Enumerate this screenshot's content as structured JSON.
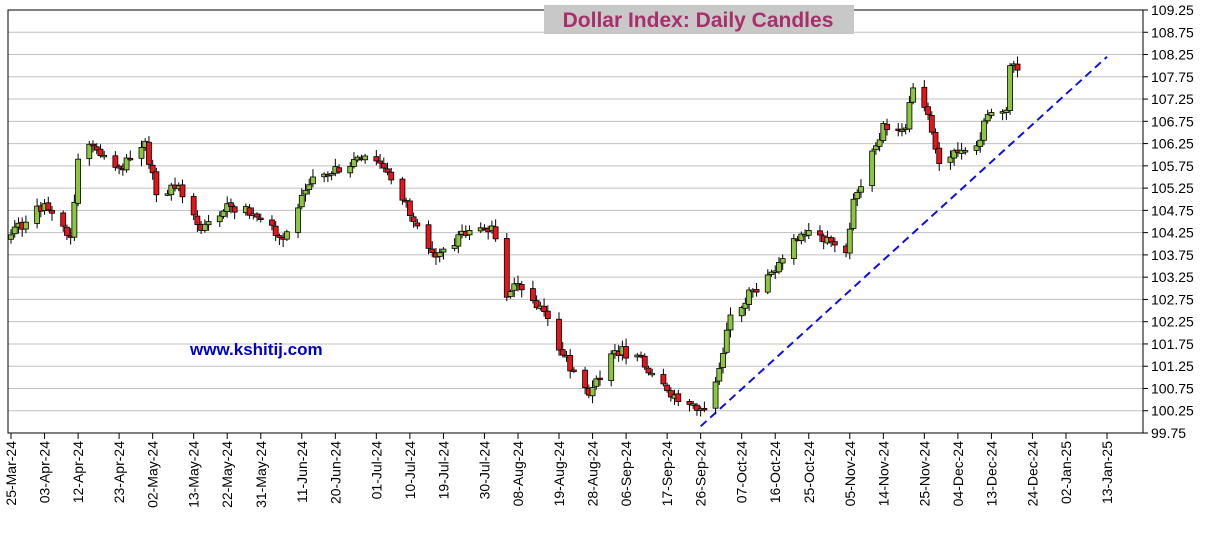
{
  "chart_data": {
    "type": "candlestick",
    "title": "Dollar Index: Daily Candles",
    "watermark": "www.kshitij.com",
    "y_ticks": [
      "109.25",
      "108.75",
      "108.25",
      "107.75",
      "107.25",
      "106.75",
      "106.25",
      "105.75",
      "105.25",
      "104.75",
      "104.25",
      "103.75",
      "103.25",
      "102.75",
      "102.25",
      "101.75",
      "101.25",
      "100.75",
      "100.25",
      "99.75"
    ],
    "x_ticks": [
      "25-Mar-24",
      "03-Apr-24",
      "12-Apr-24",
      "23-Apr-24",
      "02-May-24",
      "13-May-24",
      "22-May-24",
      "31-May-24",
      "11-Jun-24",
      "20-Jun-24",
      "01-Jul-24",
      "10-Jul-24",
      "19-Jul-24",
      "30-Jul-24",
      "08-Aug-24",
      "19-Aug-24",
      "28-Aug-24",
      "06-Sep-24",
      "17-Sep-24",
      "26-Sep-24",
      "07-Oct-24",
      "16-Oct-24",
      "25-Oct-24",
      "05-Nov-24",
      "14-Nov-24",
      "25-Nov-24",
      "04-Dec-24",
      "13-Dec-24",
      "24-Dec-24",
      "02-Jan-25",
      "13-Jan-25"
    ],
    "ylim": [
      99.75,
      109.25
    ],
    "grid": true,
    "colors": {
      "up": "#8cc63f",
      "down": "#e8141c",
      "trendline": "#1010e0",
      "title": "#a8306a",
      "watermark": "#0000cc"
    },
    "trendline": {
      "start": {
        "x": "26-Sep-24",
        "y": 99.9
      },
      "end": {
        "x": "13-Jan-25",
        "y": 108.2
      }
    },
    "anchors": [
      {
        "x": "25-Mar-24",
        "c": 104.2,
        "lo": 104.05,
        "hi": 104.4
      },
      {
        "x": "03-Apr-24",
        "c": 104.9,
        "lo": 104.35,
        "hi": 105.1
      },
      {
        "x": "10-Apr-24",
        "c": 104.15,
        "lo": 103.9,
        "hi": 104.3
      },
      {
        "x": "12-Apr-24",
        "c": 105.9,
        "lo": 105.2,
        "hi": 106.1
      },
      {
        "x": "16-Apr-24",
        "c": 106.2,
        "lo": 106.0,
        "hi": 106.5
      },
      {
        "x": "23-Apr-24",
        "c": 105.7,
        "lo": 105.55,
        "hi": 106.0
      },
      {
        "x": "30-Apr-24",
        "c": 106.3,
        "lo": 106.05,
        "hi": 106.5
      },
      {
        "x": "03-May-24",
        "c": 105.1,
        "lo": 104.7,
        "hi": 105.3
      },
      {
        "x": "09-May-24",
        "c": 105.3,
        "lo": 105.1,
        "hi": 105.6
      },
      {
        "x": "15-May-24",
        "c": 104.3,
        "lo": 104.1,
        "hi": 104.6
      },
      {
        "x": "22-May-24",
        "c": 104.9,
        "lo": 104.7,
        "hi": 105.1
      },
      {
        "x": "30-May-24",
        "c": 104.6,
        "lo": 104.5,
        "hi": 105.1
      },
      {
        "x": "06-Jun-24",
        "c": 104.1,
        "lo": 104.0,
        "hi": 104.3
      },
      {
        "x": "12-Jun-24",
        "c": 105.2,
        "lo": 104.9,
        "hi": 105.3
      },
      {
        "x": "14-Jun-24",
        "c": 105.5,
        "lo": 105.2,
        "hi": 105.8
      },
      {
        "x": "27-Jun-24",
        "c": 105.9,
        "lo": 105.7,
        "hi": 106.1
      },
      {
        "x": "03-Jul-24",
        "c": 105.7,
        "lo": 105.5,
        "hi": 105.9
      },
      {
        "x": "12-Jul-24",
        "c": 104.4,
        "lo": 104.1,
        "hi": 104.6
      },
      {
        "x": "17-Jul-24",
        "c": 103.7,
        "lo": 103.6,
        "hi": 104.0
      },
      {
        "x": "26-Jul-24",
        "c": 104.3,
        "lo": 104.1,
        "hi": 104.6
      },
      {
        "x": "01-Aug-24",
        "c": 104.4,
        "lo": 104.1,
        "hi": 104.7
      },
      {
        "x": "05-Aug-24",
        "c": 102.8,
        "lo": 102.15,
        "hi": 103.2
      },
      {
        "x": "07-Aug-24",
        "c": 103.1,
        "lo": 102.8,
        "hi": 103.3
      },
      {
        "x": "14-Aug-24",
        "c": 102.6,
        "lo": 102.4,
        "hi": 103.0
      },
      {
        "x": "20-Aug-24",
        "c": 101.5,
        "lo": 101.3,
        "hi": 101.8
      },
      {
        "x": "27-Aug-24",
        "c": 100.6,
        "lo": 100.5,
        "hi": 100.9
      },
      {
        "x": "03-Sep-24",
        "c": 101.6,
        "lo": 101.4,
        "hi": 101.8
      },
      {
        "x": "09-Sep-24",
        "c": 101.5,
        "lo": 101.3,
        "hi": 101.7
      },
      {
        "x": "12-Sep-24",
        "c": 101.1,
        "lo": 101.0,
        "hi": 101.4
      },
      {
        "x": "17-Sep-24",
        "c": 100.7,
        "lo": 100.4,
        "hi": 101.0
      },
      {
        "x": "27-Sep-24",
        "c": 100.3,
        "lo": 100.2,
        "hi": 100.6
      },
      {
        "x": "01-Oct-24",
        "c": 101.2,
        "lo": 100.7,
        "hi": 101.3
      },
      {
        "x": "04-Oct-24",
        "c": 102.4,
        "lo": 101.9,
        "hi": 102.5
      },
      {
        "x": "14-Oct-24",
        "c": 103.3,
        "lo": 103.1,
        "hi": 103.4
      },
      {
        "x": "22-Oct-24",
        "c": 104.1,
        "lo": 103.9,
        "hi": 104.2
      },
      {
        "x": "25-Oct-24",
        "c": 104.3,
        "lo": 104.1,
        "hi": 104.6
      },
      {
        "x": "04-Nov-24",
        "c": 103.8,
        "lo": 103.6,
        "hi": 104.1
      },
      {
        "x": "06-Nov-24",
        "c": 105.0,
        "lo": 103.8,
        "hi": 105.4
      },
      {
        "x": "12-Nov-24",
        "c": 106.2,
        "lo": 105.7,
        "hi": 106.4
      },
      {
        "x": "14-Nov-24",
        "c": 106.7,
        "lo": 106.5,
        "hi": 107.0
      },
      {
        "x": "20-Nov-24",
        "c": 106.6,
        "lo": 106.3,
        "hi": 106.9
      },
      {
        "x": "22-Nov-24",
        "c": 107.5,
        "lo": 106.8,
        "hi": 108.0
      },
      {
        "x": "26-Nov-24",
        "c": 106.9,
        "lo": 106.7,
        "hi": 107.2
      },
      {
        "x": "29-Nov-24",
        "c": 105.8,
        "lo": 105.7,
        "hi": 106.3
      },
      {
        "x": "05-Dec-24",
        "c": 106.1,
        "lo": 105.8,
        "hi": 106.4
      },
      {
        "x": "09-Dec-24",
        "c": 106.2,
        "lo": 105.9,
        "hi": 106.4
      },
      {
        "x": "12-Dec-24",
        "c": 106.9,
        "lo": 106.7,
        "hi": 107.1
      },
      {
        "x": "17-Dec-24",
        "c": 107.0,
        "lo": 106.8,
        "hi": 107.2
      },
      {
        "x": "18-Dec-24",
        "c": 108.0,
        "lo": 107.0,
        "hi": 108.2
      },
      {
        "x": "20-Dec-24",
        "c": 107.9,
        "lo": 107.7,
        "hi": 108.1
      }
    ]
  }
}
